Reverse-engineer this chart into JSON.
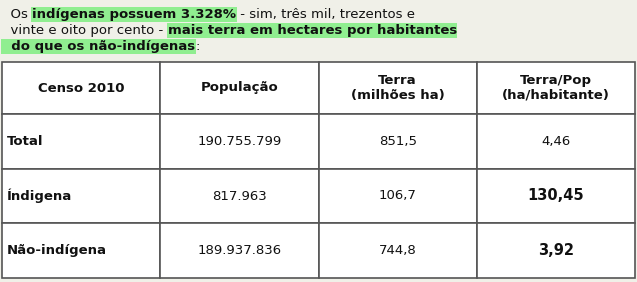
{
  "line1": [
    {
      "text": "  Os ",
      "bold": false,
      "highlight": false
    },
    {
      "text": "indígenas possuem 3.328%",
      "bold": true,
      "highlight": true
    },
    {
      "text": " - sim, três mil, trezentos e",
      "bold": false,
      "highlight": false
    }
  ],
  "line2": [
    {
      "text": "  vinte e oito por cento - ",
      "bold": false,
      "highlight": false
    },
    {
      "text": "mais terra em hectares por habitantes",
      "bold": true,
      "highlight": true
    }
  ],
  "line3": [
    {
      "text": "  do que os não-indígenas",
      "bold": true,
      "highlight": true
    },
    {
      "text": ":",
      "bold": false,
      "highlight": false
    }
  ],
  "table_headers": [
    "Censo 2010",
    "População",
    "Terra\n(milhões ha)",
    "Terra/Pop\n(ha/habitante)"
  ],
  "table_rows": [
    [
      "Total",
      "190.755.799",
      "851,5",
      "4,46",
      false,
      false,
      false,
      false
    ],
    [
      "Índigena",
      "817.963",
      "106,7",
      "130,45",
      false,
      false,
      false,
      true
    ],
    [
      "Não-indígena",
      "189.937.836",
      "744,8",
      "3,92",
      false,
      false,
      false,
      true
    ]
  ],
  "header_bold": [
    true,
    true,
    true,
    true
  ],
  "row_first_col_bold": [
    true,
    true,
    true
  ],
  "bg_color": "#f0f0e8",
  "table_bg": "#ffffff",
  "grid_color": "#555555",
  "highlight_green": "#90EE90",
  "text_color": "#111111",
  "fontsize": 9.5,
  "table_fontsize": 9.5,
  "fig_w": 6.37,
  "fig_h": 2.82,
  "dpi": 100
}
